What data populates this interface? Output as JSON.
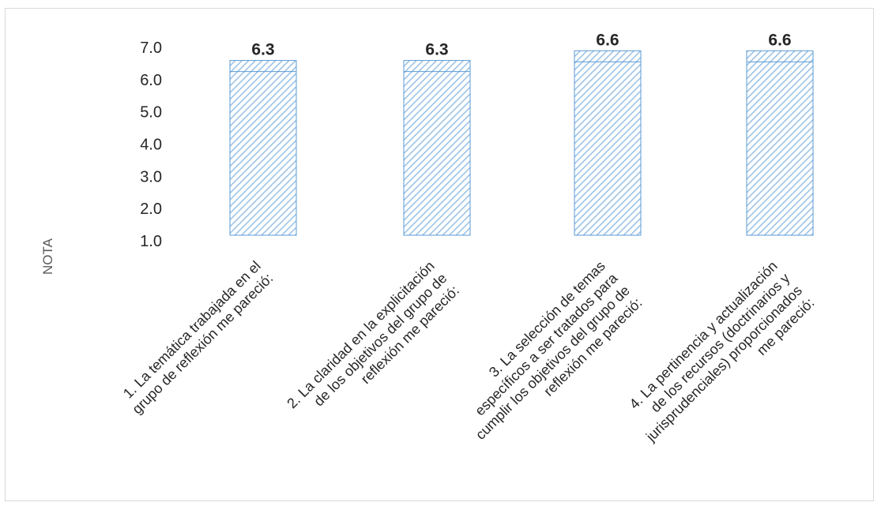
{
  "chart_data": {
    "type": "bar",
    "title": "",
    "ylabel": "NOTA",
    "xlabel": "",
    "ylim": [
      1.0,
      7.0
    ],
    "yticks": [
      "7.0",
      "6.0",
      "5.0",
      "4.0",
      "3.0",
      "2.0",
      "1.0"
    ],
    "ytick_values": [
      7,
      6,
      5,
      4,
      3,
      2,
      1
    ],
    "grid": false,
    "categories": [
      [
        "1. La temática trabajada en el",
        "grupo de reflexión me pareció:"
      ],
      [
        "2. La claridad en la explicitación",
        "de los objetivos del grupo de",
        "reflexión me pareció:"
      ],
      [
        "3. La selección de temas",
        "específicos a ser tratados para",
        "cumplir los objetivos del grupo de",
        "reflexión me pareció:"
      ],
      [
        "4. La pertinencia y actualización",
        "de los recursos (doctrinarios y",
        "jurisprudenciales) proporcionados",
        "me pareció:"
      ]
    ],
    "values": [
      6.3,
      6.3,
      6.6,
      6.6
    ],
    "value_labels": [
      "6.3",
      "6.3",
      "6.6",
      "6.6"
    ],
    "colors": {
      "bar_fill": "#9dc3e6",
      "bar_stroke": "#5b9bd5",
      "text": "#262626",
      "axis_label": "#595959"
    }
  }
}
